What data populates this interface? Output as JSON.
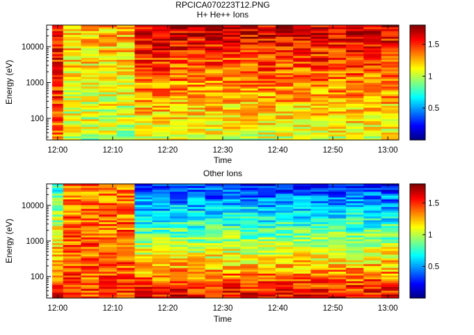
{
  "figure_title": "RPCICA070223T12.PNG",
  "chart_data": [
    {
      "type": "heatmap",
      "title": "H+ He++ Ions",
      "xlabel": "Time",
      "ylabel": "Energy (eV)",
      "x_tick_labels": [
        "12:00",
        "12:10",
        "12:20",
        "12:30",
        "12:40",
        "12:50",
        "13:00"
      ],
      "x_range": [
        "11:58",
        "13:02"
      ],
      "y_scale": "log",
      "y_tick_labels": [
        "100",
        "1000",
        "10000"
      ],
      "y_tick_values": [
        100,
        1000,
        10000
      ],
      "y_range": [
        25,
        40000
      ],
      "colorbar": {
        "range": [
          0,
          1.8
        ],
        "tick_labels": [
          "0.5",
          "1",
          "1.5"
        ],
        "tick_values": [
          0.5,
          1,
          1.5
        ],
        "colormap": "jet"
      },
      "time_columns": [
        "11:59",
        "12:02",
        "12:05",
        "12:08",
        "12:11",
        "12:15",
        "12:18",
        "12:21",
        "12:24",
        "12:28",
        "12:31",
        "12:34",
        "12:37",
        "12:41",
        "12:44",
        "12:47",
        "12:50",
        "12:54",
        "12:57",
        "13:00"
      ],
      "value_profiles": [
        {
          "time_range": [
            "11:59",
            "12:01"
          ],
          "low_energy": 1.4,
          "high_energy": 1.6
        },
        {
          "time_range": [
            "12:01",
            "12:14"
          ],
          "low_energy": 1.0,
          "high_energy": 1.25
        },
        {
          "time_range": [
            "12:14",
            "13:02"
          ],
          "low_energy": 1.05,
          "high_energy": 1.65
        }
      ]
    },
    {
      "type": "heatmap",
      "title": "Other Ions",
      "xlabel": "Time",
      "ylabel": "Energy (eV)",
      "x_tick_labels": [
        "12:00",
        "12:10",
        "12:20",
        "12:30",
        "12:40",
        "12:50",
        "13:00"
      ],
      "x_range": [
        "11:58",
        "13:02"
      ],
      "y_scale": "log",
      "y_tick_labels": [
        "100",
        "1000",
        "10000"
      ],
      "y_tick_values": [
        100,
        1000,
        10000
      ],
      "y_range": [
        25,
        40000
      ],
      "colorbar": {
        "range": [
          0,
          1.8
        ],
        "tick_labels": [
          "0.5",
          "1",
          "1.5"
        ],
        "tick_values": [
          0.5,
          1,
          1.5
        ],
        "colormap": "jet"
      },
      "time_columns": [
        "11:59",
        "12:02",
        "12:05",
        "12:08",
        "12:11",
        "12:15",
        "12:18",
        "12:21",
        "12:24",
        "12:28",
        "12:31",
        "12:34",
        "12:37",
        "12:41",
        "12:44",
        "12:47",
        "12:50",
        "12:54",
        "12:57",
        "13:00"
      ],
      "value_profiles": [
        {
          "time_range": [
            "11:59",
            "12:01"
          ],
          "low_energy": 1.55,
          "high_energy": 0.75
        },
        {
          "time_range": [
            "12:01",
            "12:14"
          ],
          "low_energy": 1.45,
          "high_energy": 1.35
        },
        {
          "time_range": [
            "12:14",
            "13:02"
          ],
          "low_energy": 1.6,
          "high_energy": 0.3
        }
      ]
    }
  ]
}
